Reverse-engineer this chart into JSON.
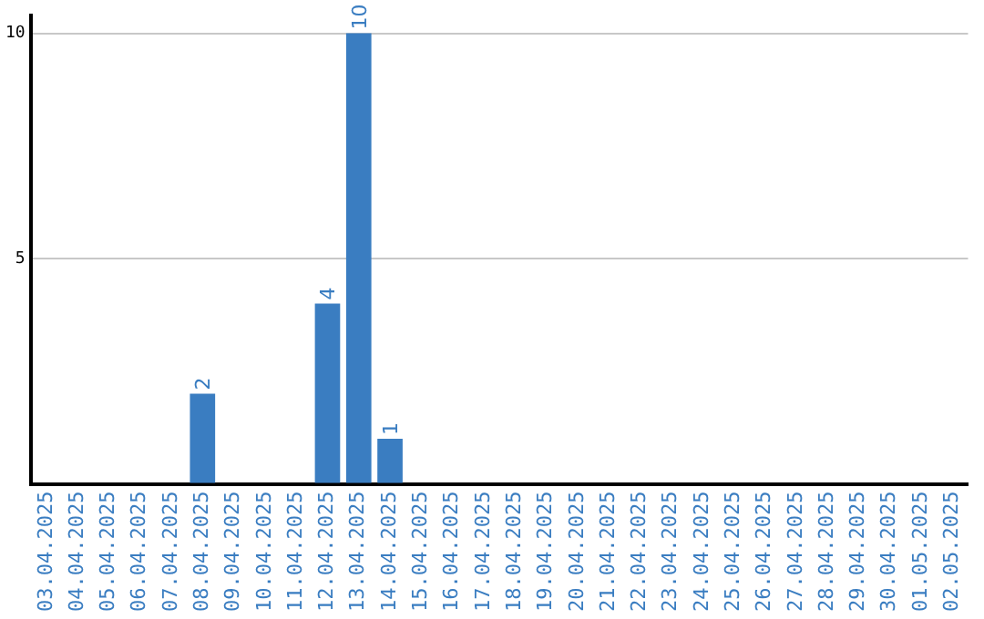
{
  "chart_data": {
    "type": "bar",
    "categories": [
      "03.04.2025",
      "04.04.2025",
      "05.04.2025",
      "06.04.2025",
      "07.04.2025",
      "08.04.2025",
      "09.04.2025",
      "10.04.2025",
      "11.04.2025",
      "12.04.2025",
      "13.04.2025",
      "14.04.2025",
      "15.04.2025",
      "16.04.2025",
      "17.04.2025",
      "18.04.2025",
      "19.04.2025",
      "20.04.2025",
      "21.04.2025",
      "22.04.2025",
      "23.04.2025",
      "24.04.2025",
      "25.04.2025",
      "26.04.2025",
      "27.04.2025",
      "28.04.2025",
      "29.04.2025",
      "30.04.2025",
      "01.05.2025",
      "02.05.2025"
    ],
    "values": [
      0,
      0,
      0,
      0,
      0,
      2,
      0,
      0,
      0,
      4,
      10,
      1,
      0,
      0,
      0,
      0,
      0,
      0,
      0,
      0,
      0,
      0,
      0,
      0,
      0,
      0,
      0,
      0,
      0,
      0
    ],
    "value_labels": [
      null,
      null,
      null,
      null,
      null,
      "2",
      null,
      null,
      null,
      "4",
      "10",
      "1",
      null,
      null,
      null,
      null,
      null,
      null,
      null,
      null,
      null,
      null,
      null,
      null,
      null,
      null,
      null,
      null,
      null,
      null
    ],
    "color": "#3a7dc1",
    "ylim": [
      0,
      10.4
    ],
    "yticks": [
      {
        "value": 0,
        "label": null
      },
      5,
      10
    ],
    "grid": "y",
    "legend": false
  }
}
